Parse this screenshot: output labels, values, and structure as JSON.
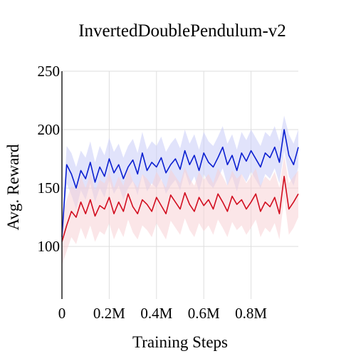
{
  "chart_data": {
    "type": "line",
    "title": "InvertedDoublePendulum-v2",
    "xlabel": "Training Steps",
    "ylabel": "Avg. Reward",
    "xlim": [
      0,
      1000000
    ],
    "ylim": [
      55,
      250
    ],
    "xticks": [
      0,
      200000,
      400000,
      600000,
      800000
    ],
    "xtick_labels": [
      "0",
      "0.2M",
      "0.4M",
      "0.6M",
      "0.8M"
    ],
    "yticks": [
      100,
      150,
      200,
      250
    ],
    "ytick_labels": [
      "100",
      "150",
      "200",
      "250"
    ],
    "grid": true,
    "legend": "none",
    "series": [
      {
        "color": "#0a1fd1",
        "band_color": "#c9ccf7",
        "x": [
          0,
          20000,
          40000,
          60000,
          80000,
          100000,
          120000,
          140000,
          160000,
          180000,
          200000,
          220000,
          240000,
          260000,
          280000,
          300000,
          320000,
          340000,
          360000,
          380000,
          400000,
          420000,
          440000,
          460000,
          480000,
          500000,
          520000,
          540000,
          560000,
          580000,
          600000,
          620000,
          640000,
          660000,
          680000,
          700000,
          720000,
          740000,
          760000,
          780000,
          800000,
          820000,
          840000,
          860000,
          880000,
          900000,
          920000,
          940000,
          960000,
          980000,
          1000000
        ],
        "y": [
          108,
          170,
          162,
          150,
          165,
          158,
          172,
          155,
          168,
          160,
          175,
          163,
          170,
          158,
          168,
          174,
          162,
          180,
          165,
          172,
          168,
          176,
          163,
          170,
          175,
          166,
          182,
          170,
          178,
          165,
          180,
          172,
          168,
          176,
          185,
          170,
          178,
          165,
          180,
          173,
          182,
          175,
          168,
          180,
          176,
          185,
          172,
          200,
          178,
          170,
          185
        ],
        "upper": [
          118,
          186,
          180,
          168,
          182,
          176,
          190,
          172,
          186,
          178,
          193,
          181,
          188,
          176,
          186,
          192,
          180,
          198,
          183,
          190,
          186,
          194,
          181,
          188,
          193,
          184,
          200,
          188,
          196,
          183,
          198,
          190,
          186,
          194,
          203,
          188,
          196,
          183,
          198,
          191,
          200,
          193,
          186,
          198,
          194,
          203,
          190,
          212,
          196,
          188,
          200
        ],
        "lower": [
          98,
          154,
          144,
          132,
          148,
          140,
          154,
          138,
          150,
          142,
          157,
          145,
          152,
          140,
          150,
          156,
          144,
          162,
          147,
          154,
          150,
          158,
          145,
          152,
          157,
          148,
          164,
          152,
          160,
          147,
          162,
          154,
          150,
          158,
          167,
          152,
          160,
          147,
          162,
          155,
          164,
          157,
          150,
          162,
          158,
          167,
          154,
          182,
          160,
          152,
          168
        ]
      },
      {
        "color": "#d20d1f",
        "band_color": "#f8d2d6",
        "x": [
          0,
          20000,
          40000,
          60000,
          80000,
          100000,
          120000,
          140000,
          160000,
          180000,
          200000,
          220000,
          240000,
          260000,
          280000,
          300000,
          320000,
          340000,
          360000,
          380000,
          400000,
          420000,
          440000,
          460000,
          480000,
          500000,
          520000,
          540000,
          560000,
          580000,
          600000,
          620000,
          640000,
          660000,
          680000,
          700000,
          720000,
          740000,
          760000,
          780000,
          800000,
          820000,
          840000,
          860000,
          880000,
          900000,
          920000,
          940000,
          960000,
          980000,
          1000000
        ],
        "y": [
          104,
          118,
          130,
          125,
          138,
          128,
          140,
          126,
          135,
          132,
          142,
          128,
          138,
          130,
          145,
          134,
          128,
          140,
          136,
          130,
          142,
          135,
          128,
          144,
          138,
          132,
          146,
          136,
          130,
          142,
          135,
          140,
          132,
          145,
          138,
          130,
          143,
          136,
          140,
          132,
          138,
          145,
          130,
          138,
          134,
          142,
          128,
          160,
          132,
          138,
          145
        ],
        "upper": [
          124,
          140,
          152,
          148,
          160,
          150,
          162,
          148,
          157,
          154,
          164,
          150,
          160,
          152,
          167,
          156,
          150,
          162,
          158,
          152,
          164,
          157,
          150,
          166,
          160,
          154,
          168,
          158,
          152,
          164,
          157,
          162,
          154,
          167,
          160,
          152,
          165,
          158,
          162,
          154,
          160,
          167,
          152,
          160,
          156,
          164,
          150,
          178,
          154,
          160,
          165
        ],
        "lower": [
          84,
          96,
          108,
          102,
          116,
          106,
          118,
          104,
          113,
          110,
          120,
          106,
          116,
          108,
          123,
          112,
          106,
          118,
          114,
          108,
          120,
          113,
          106,
          122,
          116,
          110,
          124,
          114,
          108,
          120,
          113,
          118,
          110,
          123,
          116,
          108,
          121,
          114,
          118,
          110,
          116,
          123,
          108,
          116,
          112,
          120,
          106,
          142,
          110,
          116,
          125
        ]
      }
    ]
  }
}
